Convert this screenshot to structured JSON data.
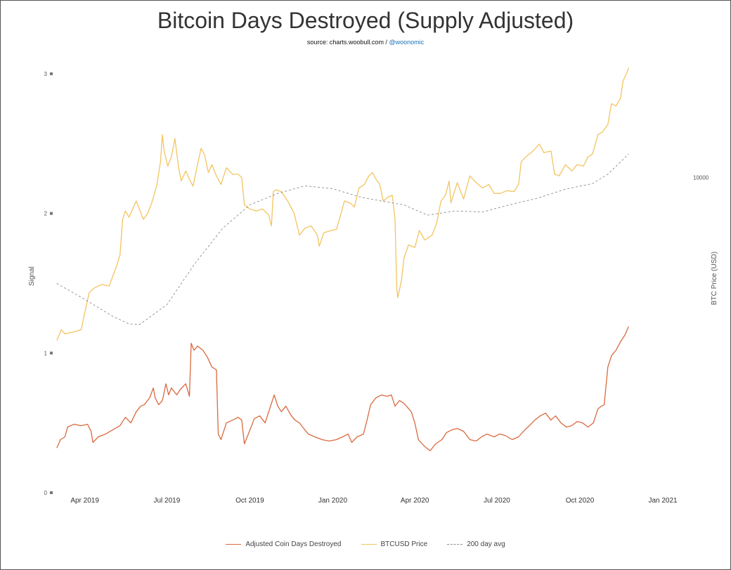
{
  "header": {
    "title": "Bitcoin Days Destroyed (Supply Adjusted)",
    "source_prefix": "source: charts.woobull.com / ",
    "source_handle": "@woonomic"
  },
  "colors": {
    "cdd": "#d96a3f",
    "btc": "#f3c460",
    "avg": "#8c8c8c",
    "handle": "#1f6fb2"
  },
  "chart_data": {
    "type": "line",
    "title": "Bitcoin Days Destroyed (Supply Adjusted)",
    "ylabel_left": "Signal",
    "ylabel_right": "BTC Price (USD)",
    "left_ticks": [
      "0",
      "1",
      "2",
      "3"
    ],
    "left_ylim": [
      0,
      3
    ],
    "right_ticks": [
      "10000"
    ],
    "right_scale": "log",
    "xlim": [
      "2019-02-26",
      "2021-01-15"
    ],
    "x_ticks": [
      {
        "date": "2019-04-01",
        "label": "Apr 2019"
      },
      {
        "date": "2019-07-01",
        "label": "Jul 2019"
      },
      {
        "date": "2019-10-01",
        "label": "Oct 2019"
      },
      {
        "date": "2020-01-01",
        "label": "Jan 2020"
      },
      {
        "date": "2020-04-01",
        "label": "Apr 2020"
      },
      {
        "date": "2020-07-01",
        "label": "Jul 2020"
      },
      {
        "date": "2020-10-01",
        "label": "Oct 2020"
      },
      {
        "date": "2021-01-01",
        "label": "Jan 2021"
      }
    ],
    "legend_position": "bottom-center",
    "grid": false,
    "series": [
      {
        "name": "Adjusted Coin Days Destroyed",
        "axis": "left",
        "points": [
          [
            "2019-03-01",
            0.32
          ],
          [
            "2019-03-05",
            0.38
          ],
          [
            "2019-03-10",
            0.4
          ],
          [
            "2019-03-13",
            0.47
          ],
          [
            "2019-03-20",
            0.49
          ],
          [
            "2019-03-28",
            0.48
          ],
          [
            "2019-04-04",
            0.49
          ],
          [
            "2019-04-08",
            0.44
          ],
          [
            "2019-04-10",
            0.36
          ],
          [
            "2019-04-16",
            0.4
          ],
          [
            "2019-04-24",
            0.42
          ],
          [
            "2019-05-02",
            0.45
          ],
          [
            "2019-05-10",
            0.48
          ],
          [
            "2019-05-16",
            0.54
          ],
          [
            "2019-05-22",
            0.5
          ],
          [
            "2019-05-28",
            0.58
          ],
          [
            "2019-06-02",
            0.62
          ],
          [
            "2019-06-06",
            0.63
          ],
          [
            "2019-06-12",
            0.68
          ],
          [
            "2019-06-16",
            0.75
          ],
          [
            "2019-06-18",
            0.68
          ],
          [
            "2019-06-22",
            0.63
          ],
          [
            "2019-06-26",
            0.66
          ],
          [
            "2019-06-30",
            0.78
          ],
          [
            "2019-07-03",
            0.7
          ],
          [
            "2019-07-06",
            0.75
          ],
          [
            "2019-07-12",
            0.7
          ],
          [
            "2019-07-16",
            0.74
          ],
          [
            "2019-07-22",
            0.78
          ],
          [
            "2019-07-26",
            0.69
          ],
          [
            "2019-07-28",
            1.07
          ],
          [
            "2019-07-31",
            1.02
          ],
          [
            "2019-08-04",
            1.05
          ],
          [
            "2019-08-10",
            1.02
          ],
          [
            "2019-08-15",
            0.97
          ],
          [
            "2019-08-20",
            0.9
          ],
          [
            "2019-08-25",
            0.88
          ],
          [
            "2019-08-27",
            0.42
          ],
          [
            "2019-08-30",
            0.38
          ],
          [
            "2019-09-05",
            0.5
          ],
          [
            "2019-09-12",
            0.52
          ],
          [
            "2019-09-18",
            0.54
          ],
          [
            "2019-09-22",
            0.52
          ],
          [
            "2019-09-25",
            0.35
          ],
          [
            "2019-09-30",
            0.43
          ],
          [
            "2019-10-06",
            0.53
          ],
          [
            "2019-10-12",
            0.55
          ],
          [
            "2019-10-18",
            0.5
          ],
          [
            "2019-10-24",
            0.62
          ],
          [
            "2019-10-28",
            0.7
          ],
          [
            "2019-11-01",
            0.62
          ],
          [
            "2019-11-05",
            0.58
          ],
          [
            "2019-11-10",
            0.62
          ],
          [
            "2019-11-15",
            0.56
          ],
          [
            "2019-11-20",
            0.52
          ],
          [
            "2019-11-25",
            0.5
          ],
          [
            "2019-12-01",
            0.45
          ],
          [
            "2019-12-05",
            0.42
          ],
          [
            "2019-12-12",
            0.4
          ],
          [
            "2019-12-20",
            0.38
          ],
          [
            "2019-12-28",
            0.37
          ],
          [
            "2020-01-05",
            0.38
          ],
          [
            "2020-01-12",
            0.4
          ],
          [
            "2020-01-18",
            0.42
          ],
          [
            "2020-01-22",
            0.36
          ],
          [
            "2020-01-28",
            0.4
          ],
          [
            "2020-02-04",
            0.42
          ],
          [
            "2020-02-08",
            0.52
          ],
          [
            "2020-02-12",
            0.63
          ],
          [
            "2020-02-18",
            0.68
          ],
          [
            "2020-02-24",
            0.7
          ],
          [
            "2020-03-01",
            0.69
          ],
          [
            "2020-03-06",
            0.7
          ],
          [
            "2020-03-10",
            0.62
          ],
          [
            "2020-03-15",
            0.66
          ],
          [
            "2020-03-20",
            0.64
          ],
          [
            "2020-03-28",
            0.58
          ],
          [
            "2020-04-01",
            0.5
          ],
          [
            "2020-04-05",
            0.38
          ],
          [
            "2020-04-12",
            0.33
          ],
          [
            "2020-04-18",
            0.3
          ],
          [
            "2020-04-24",
            0.35
          ],
          [
            "2020-05-01",
            0.38
          ],
          [
            "2020-05-06",
            0.43
          ],
          [
            "2020-05-12",
            0.45
          ],
          [
            "2020-05-18",
            0.46
          ],
          [
            "2020-05-25",
            0.44
          ],
          [
            "2020-06-01",
            0.38
          ],
          [
            "2020-06-08",
            0.37
          ],
          [
            "2020-06-14",
            0.4
          ],
          [
            "2020-06-20",
            0.42
          ],
          [
            "2020-06-28",
            0.4
          ],
          [
            "2020-07-04",
            0.42
          ],
          [
            "2020-07-10",
            0.41
          ],
          [
            "2020-07-18",
            0.38
          ],
          [
            "2020-07-25",
            0.4
          ],
          [
            "2020-08-01",
            0.45
          ],
          [
            "2020-08-06",
            0.48
          ],
          [
            "2020-08-12",
            0.52
          ],
          [
            "2020-08-18",
            0.55
          ],
          [
            "2020-08-24",
            0.57
          ],
          [
            "2020-08-30",
            0.52
          ],
          [
            "2020-09-04",
            0.55
          ],
          [
            "2020-09-10",
            0.5
          ],
          [
            "2020-09-16",
            0.47
          ],
          [
            "2020-09-22",
            0.48
          ],
          [
            "2020-09-28",
            0.51
          ],
          [
            "2020-10-04",
            0.5
          ],
          [
            "2020-10-10",
            0.47
          ],
          [
            "2020-10-16",
            0.5
          ],
          [
            "2020-10-21",
            0.6
          ],
          [
            "2020-10-25",
            0.62
          ],
          [
            "2020-10-28",
            0.63
          ],
          [
            "2020-11-01",
            0.9
          ],
          [
            "2020-11-05",
            0.98
          ],
          [
            "2020-11-10",
            1.02
          ],
          [
            "2020-11-15",
            1.08
          ],
          [
            "2020-11-20",
            1.13
          ],
          [
            "2020-11-24",
            1.19
          ]
        ]
      },
      {
        "name": "BTCUSD Price",
        "axis": "right",
        "points": [
          [
            "2019-03-01",
            3800
          ],
          [
            "2019-03-03",
            3900
          ],
          [
            "2019-03-06",
            4050
          ],
          [
            "2019-03-10",
            3950
          ],
          [
            "2019-03-20",
            4000
          ],
          [
            "2019-03-28",
            4050
          ],
          [
            "2019-04-02",
            4600
          ],
          [
            "2019-04-06",
            5050
          ],
          [
            "2019-04-12",
            5200
          ],
          [
            "2019-04-20",
            5300
          ],
          [
            "2019-04-28",
            5250
          ],
          [
            "2019-05-05",
            5800
          ],
          [
            "2019-05-10",
            6300
          ],
          [
            "2019-05-13",
            7800
          ],
          [
            "2019-05-16",
            8200
          ],
          [
            "2019-05-20",
            7900
          ],
          [
            "2019-05-28",
            8700
          ],
          [
            "2019-06-05",
            7800
          ],
          [
            "2019-06-10",
            8100
          ],
          [
            "2019-06-15",
            8700
          ],
          [
            "2019-06-20",
            9600
          ],
          [
            "2019-06-24",
            11000
          ],
          [
            "2019-06-26",
            12900
          ],
          [
            "2019-06-28",
            11700
          ],
          [
            "2019-07-02",
            10700
          ],
          [
            "2019-07-06",
            11300
          ],
          [
            "2019-07-10",
            12600
          ],
          [
            "2019-07-14",
            10600
          ],
          [
            "2019-07-17",
            9800
          ],
          [
            "2019-07-22",
            10400
          ],
          [
            "2019-07-26",
            9900
          ],
          [
            "2019-07-30",
            9500
          ],
          [
            "2019-08-04",
            10800
          ],
          [
            "2019-08-08",
            11900
          ],
          [
            "2019-08-12",
            11400
          ],
          [
            "2019-08-16",
            10300
          ],
          [
            "2019-08-20",
            10800
          ],
          [
            "2019-08-25",
            10100
          ],
          [
            "2019-08-30",
            9600
          ],
          [
            "2019-09-05",
            10600
          ],
          [
            "2019-09-12",
            10200
          ],
          [
            "2019-09-18",
            10200
          ],
          [
            "2019-09-22",
            10000
          ],
          [
            "2019-09-25",
            8500
          ],
          [
            "2019-10-01",
            8300
          ],
          [
            "2019-10-08",
            8200
          ],
          [
            "2019-10-15",
            8300
          ],
          [
            "2019-10-22",
            8000
          ],
          [
            "2019-10-25",
            7500
          ],
          [
            "2019-10-27",
            9200
          ],
          [
            "2019-10-30",
            9300
          ],
          [
            "2019-11-05",
            9200
          ],
          [
            "2019-11-12",
            8700
          ],
          [
            "2019-11-19",
            8100
          ],
          [
            "2019-11-25",
            7100
          ],
          [
            "2019-12-01",
            7400
          ],
          [
            "2019-12-08",
            7500
          ],
          [
            "2019-12-15",
            7100
          ],
          [
            "2019-12-17",
            6650
          ],
          [
            "2019-12-22",
            7200
          ],
          [
            "2019-12-30",
            7300
          ],
          [
            "2020-01-05",
            7350
          ],
          [
            "2020-01-09",
            7900
          ],
          [
            "2020-01-14",
            8700
          ],
          [
            "2020-01-20",
            8600
          ],
          [
            "2020-01-25",
            8400
          ],
          [
            "2020-01-30",
            9400
          ],
          [
            "2020-02-05",
            9600
          ],
          [
            "2020-02-10",
            10100
          ],
          [
            "2020-02-14",
            10300
          ],
          [
            "2020-02-18",
            9900
          ],
          [
            "2020-02-22",
            9600
          ],
          [
            "2020-02-26",
            8700
          ],
          [
            "2020-03-02",
            8900
          ],
          [
            "2020-03-07",
            9000
          ],
          [
            "2020-03-10",
            7800
          ],
          [
            "2020-03-12",
            5200
          ],
          [
            "2020-03-13",
            4900
          ],
          [
            "2020-03-17",
            5400
          ],
          [
            "2020-03-20",
            6200
          ],
          [
            "2020-03-25",
            6700
          ],
          [
            "2020-04-01",
            6600
          ],
          [
            "2020-04-06",
            7300
          ],
          [
            "2020-04-12",
            6900
          ],
          [
            "2020-04-20",
            7100
          ],
          [
            "2020-04-25",
            7600
          ],
          [
            "2020-04-30",
            8700
          ],
          [
            "2020-05-05",
            9000
          ],
          [
            "2020-05-09",
            9800
          ],
          [
            "2020-05-11",
            8600
          ],
          [
            "2020-05-18",
            9700
          ],
          [
            "2020-05-25",
            8800
          ],
          [
            "2020-06-01",
            10100
          ],
          [
            "2020-06-08",
            9700
          ],
          [
            "2020-06-15",
            9400
          ],
          [
            "2020-06-22",
            9600
          ],
          [
            "2020-06-28",
            9100
          ],
          [
            "2020-07-05",
            9100
          ],
          [
            "2020-07-12",
            9250
          ],
          [
            "2020-07-20",
            9200
          ],
          [
            "2020-07-25",
            9600
          ],
          [
            "2020-07-28",
            11000
          ],
          [
            "2020-08-02",
            11300
          ],
          [
            "2020-08-10",
            11700
          ],
          [
            "2020-08-17",
            12200
          ],
          [
            "2020-08-22",
            11600
          ],
          [
            "2020-08-30",
            11700
          ],
          [
            "2020-09-03",
            10200
          ],
          [
            "2020-09-08",
            10100
          ],
          [
            "2020-09-15",
            10800
          ],
          [
            "2020-09-22",
            10400
          ],
          [
            "2020-09-28",
            10800
          ],
          [
            "2020-10-05",
            10700
          ],
          [
            "2020-10-10",
            11300
          ],
          [
            "2020-10-15",
            11500
          ],
          [
            "2020-10-21",
            12900
          ],
          [
            "2020-10-26",
            13100
          ],
          [
            "2020-11-01",
            13700
          ],
          [
            "2020-11-05",
            15500
          ],
          [
            "2020-11-10",
            15300
          ],
          [
            "2020-11-15",
            16000
          ],
          [
            "2020-11-18",
            17800
          ],
          [
            "2020-11-22",
            18600
          ],
          [
            "2020-11-24",
            19200
          ]
        ]
      },
      {
        "name": "200 day avg",
        "axis": "right",
        "style": "dashed",
        "points": [
          [
            "2019-03-01",
            5330
          ],
          [
            "2019-04-01",
            4850
          ],
          [
            "2019-05-01",
            4400
          ],
          [
            "2019-05-20",
            4190
          ],
          [
            "2019-06-01",
            4180
          ],
          [
            "2019-07-01",
            4700
          ],
          [
            "2019-08-01",
            6000
          ],
          [
            "2019-09-01",
            7400
          ],
          [
            "2019-10-01",
            8500
          ],
          [
            "2019-11-01",
            9100
          ],
          [
            "2019-12-01",
            9520
          ],
          [
            "2020-01-01",
            9360
          ],
          [
            "2020-02-01",
            8900
          ],
          [
            "2020-03-01",
            8650
          ],
          [
            "2020-03-20",
            8500
          ],
          [
            "2020-04-15",
            8000
          ],
          [
            "2020-05-15",
            8200
          ],
          [
            "2020-06-15",
            8150
          ],
          [
            "2020-07-15",
            8500
          ],
          [
            "2020-08-15",
            8850
          ],
          [
            "2020-09-15",
            9330
          ],
          [
            "2020-10-15",
            9650
          ],
          [
            "2020-11-01",
            10200
          ],
          [
            "2020-11-24",
            11500
          ]
        ]
      }
    ]
  }
}
